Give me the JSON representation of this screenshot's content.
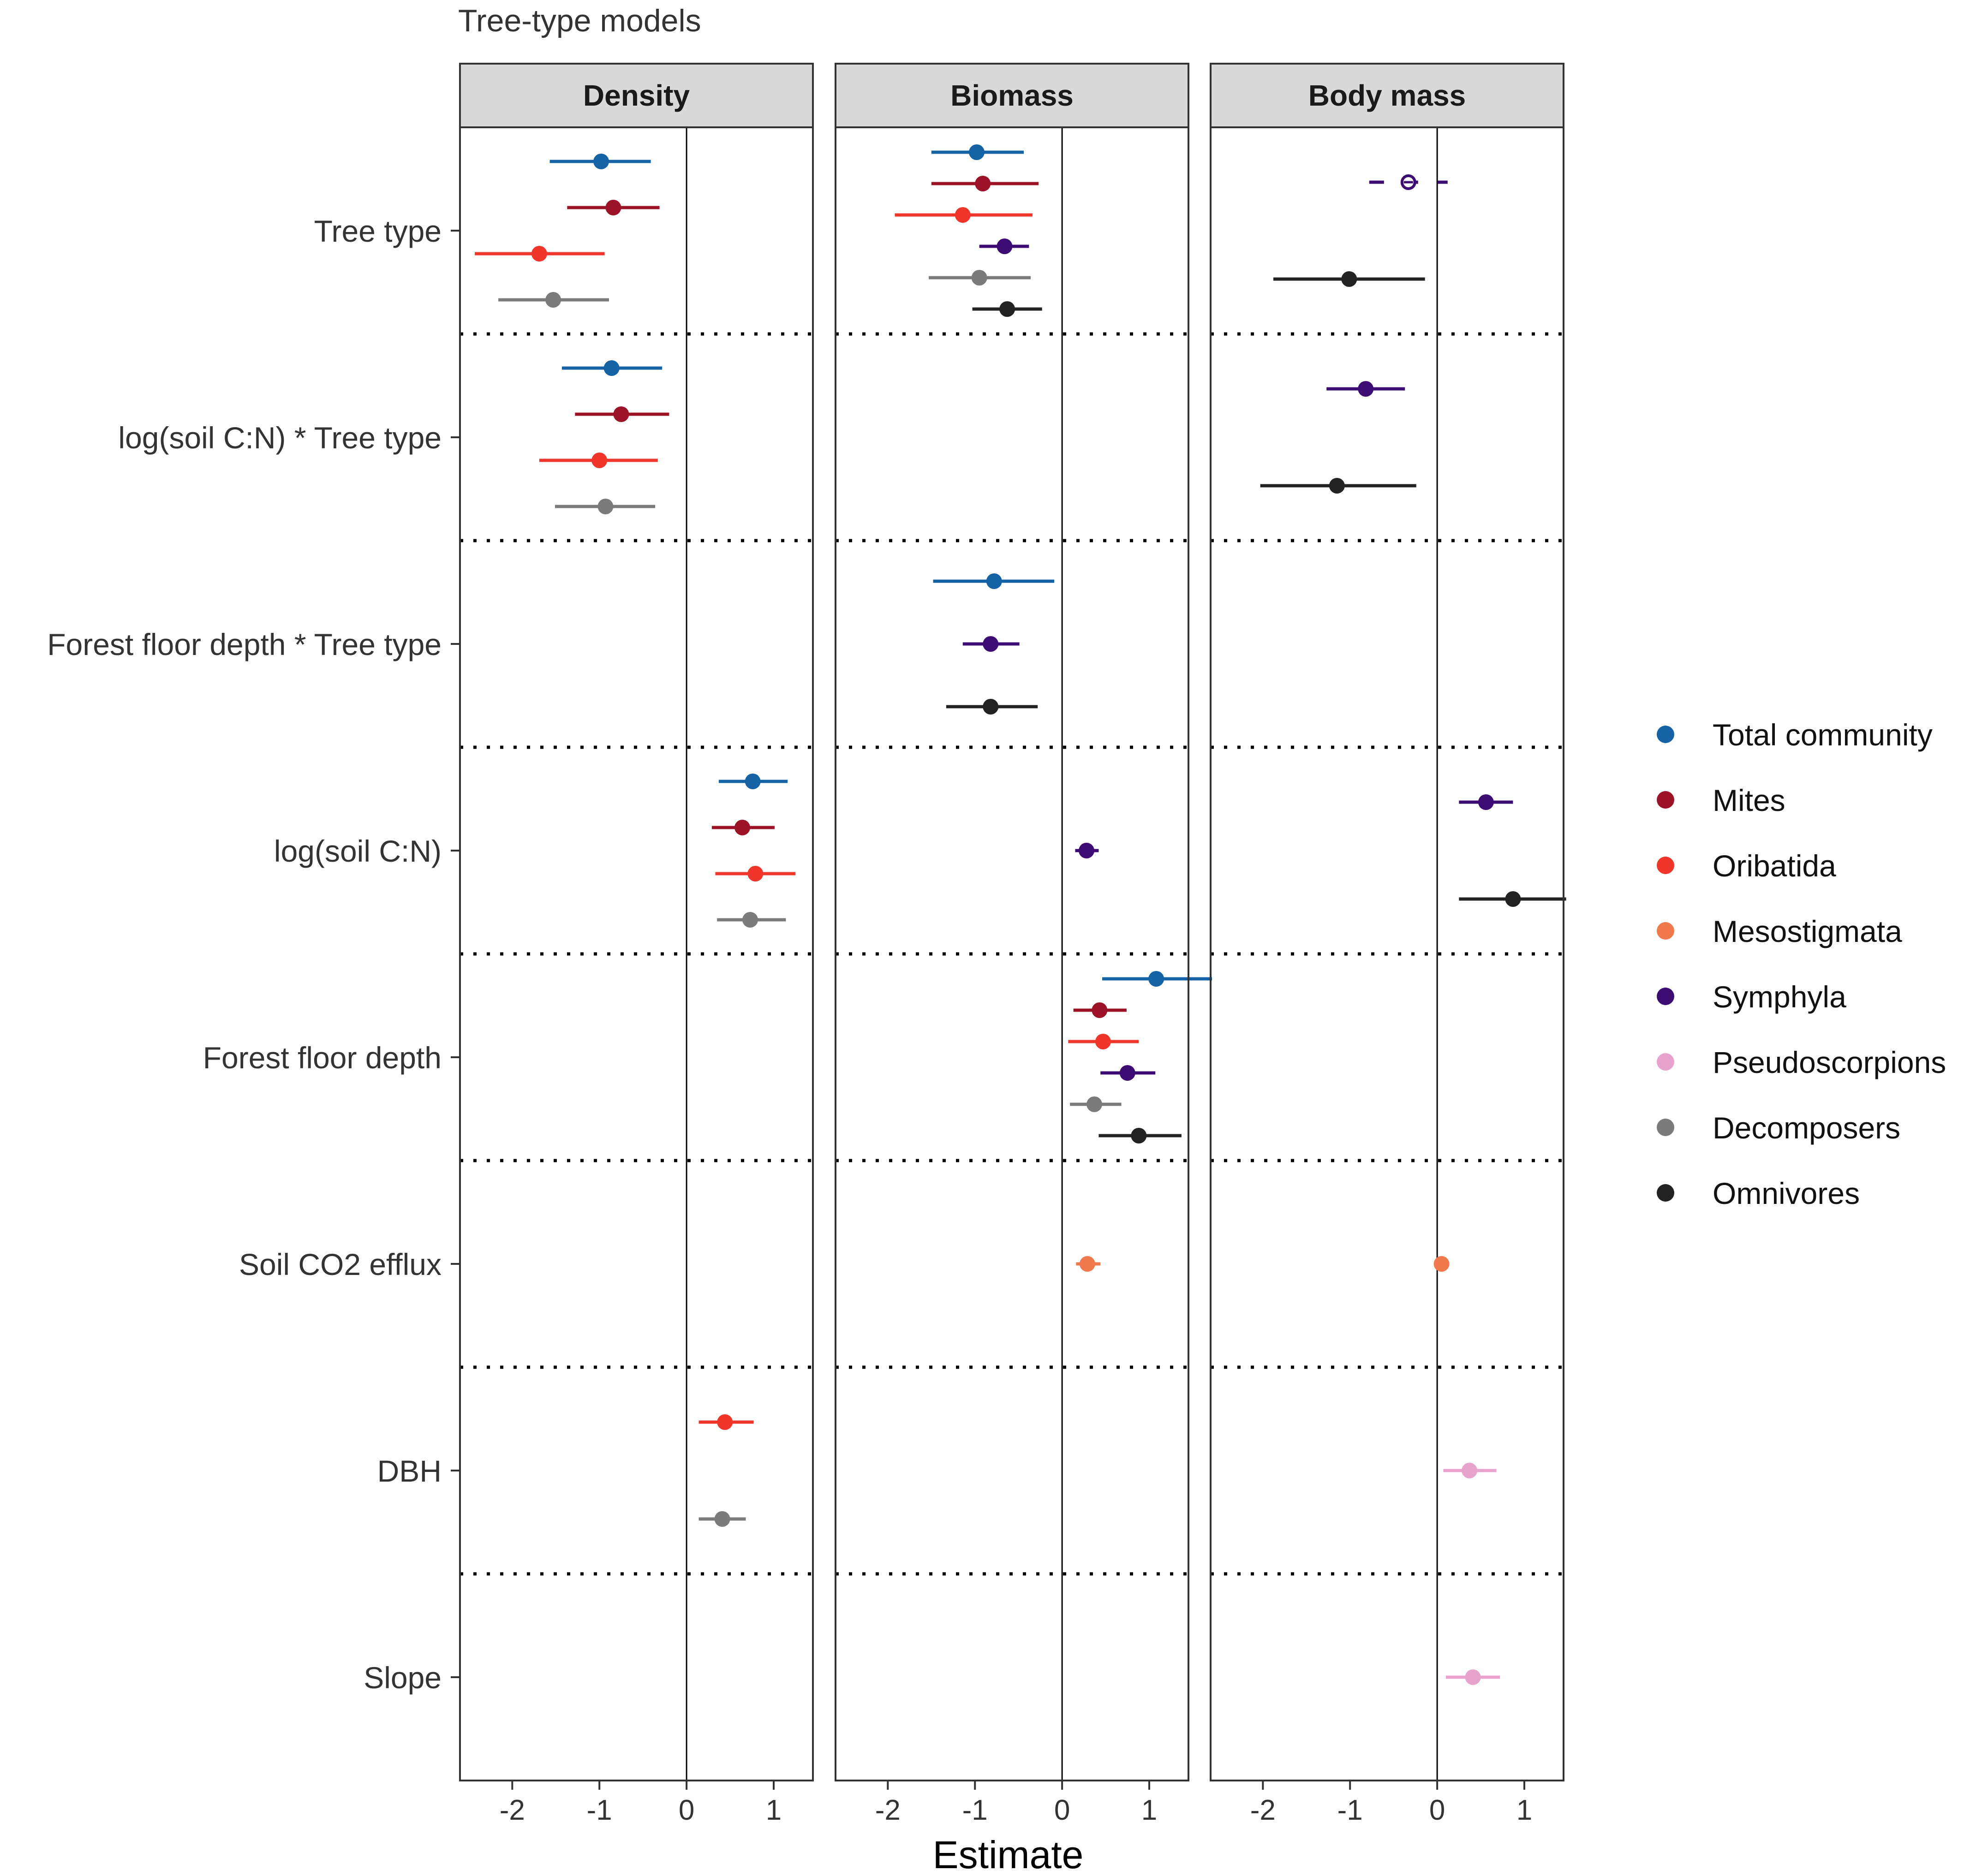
{
  "chart_data": {
    "type": "forest",
    "title": "Tree-type models",
    "xlabel": "Estimate",
    "xlim": [
      -2.6,
      1.45
    ],
    "xticks": [
      -2,
      -1,
      0,
      1
    ],
    "xtick_labels": [
      "-2",
      "-1",
      "0",
      "1"
    ],
    "terms": [
      "Tree type",
      "log(soil C:N) * Tree type",
      "Forest floor depth * Tree type",
      "log(soil C:N)",
      "Forest floor depth",
      "Soil CO2 efflux",
      "DBH",
      "Slope"
    ],
    "groups": [
      {
        "name": "Total community",
        "color": "#1563a4"
      },
      {
        "name": "Mites",
        "color": "#9c1327"
      },
      {
        "name": "Oribatida",
        "color": "#f0362b"
      },
      {
        "name": "Mesostigmata",
        "color": "#f07a4e"
      },
      {
        "name": "Symphyla",
        "color": "#3d0c73"
      },
      {
        "name": "Pseudoscorpions",
        "color": "#e8a3cd"
      },
      {
        "name": "Decomposers",
        "color": "#7b7b7b"
      },
      {
        "name": "Omnivores",
        "color": "#222222"
      }
    ],
    "panels": [
      {
        "name": "Density",
        "estimates": [
          {
            "term": 0,
            "group": "Total community",
            "est": -0.98,
            "lo": -1.57,
            "hi": -0.41
          },
          {
            "term": 0,
            "group": "Mites",
            "est": -0.84,
            "lo": -1.37,
            "hi": -0.31
          },
          {
            "term": 0,
            "group": "Oribatida",
            "est": -1.69,
            "lo": -2.43,
            "hi": -0.94
          },
          {
            "term": 0,
            "group": "Decomposers",
            "est": -1.53,
            "lo": -2.16,
            "hi": -0.89
          },
          {
            "term": 1,
            "group": "Total community",
            "est": -0.86,
            "lo": -1.43,
            "hi": -0.28
          },
          {
            "term": 1,
            "group": "Mites",
            "est": -0.75,
            "lo": -1.28,
            "hi": -0.2
          },
          {
            "term": 1,
            "group": "Oribatida",
            "est": -1.0,
            "lo": -1.69,
            "hi": -0.33
          },
          {
            "term": 1,
            "group": "Decomposers",
            "est": -0.93,
            "lo": -1.51,
            "hi": -0.36
          },
          {
            "term": 3,
            "group": "Total community",
            "est": 0.76,
            "lo": 0.37,
            "hi": 1.16
          },
          {
            "term": 3,
            "group": "Mites",
            "est": 0.64,
            "lo": 0.29,
            "hi": 1.01
          },
          {
            "term": 3,
            "group": "Oribatida",
            "est": 0.79,
            "lo": 0.33,
            "hi": 1.25
          },
          {
            "term": 3,
            "group": "Decomposers",
            "est": 0.73,
            "lo": 0.35,
            "hi": 1.14
          },
          {
            "term": 6,
            "group": "Oribatida",
            "est": 0.44,
            "lo": 0.14,
            "hi": 0.77
          },
          {
            "term": 6,
            "group": "Decomposers",
            "est": 0.41,
            "lo": 0.14,
            "hi": 0.68
          }
        ]
      },
      {
        "name": "Biomass",
        "estimates": [
          {
            "term": 0,
            "group": "Total community",
            "est": -0.98,
            "lo": -1.5,
            "hi": -0.44
          },
          {
            "term": 0,
            "group": "Mites",
            "est": -0.91,
            "lo": -1.5,
            "hi": -0.27
          },
          {
            "term": 0,
            "group": "Oribatida",
            "est": -1.14,
            "lo": -1.92,
            "hi": -0.34
          },
          {
            "term": 0,
            "group": "Symphyla",
            "est": -0.66,
            "lo": -0.95,
            "hi": -0.38
          },
          {
            "term": 0,
            "group": "Decomposers",
            "est": -0.95,
            "lo": -1.53,
            "hi": -0.36
          },
          {
            "term": 0,
            "group": "Omnivores",
            "est": -0.63,
            "lo": -1.03,
            "hi": -0.23
          },
          {
            "term": 2,
            "group": "Total community",
            "est": -0.78,
            "lo": -1.48,
            "hi": -0.09
          },
          {
            "term": 2,
            "group": "Symphyla",
            "est": -0.82,
            "lo": -1.14,
            "hi": -0.49
          },
          {
            "term": 2,
            "group": "Omnivores",
            "est": -0.82,
            "lo": -1.33,
            "hi": -0.28
          },
          {
            "term": 3,
            "group": "Symphyla",
            "est": 0.28,
            "lo": 0.15,
            "hi": 0.42
          },
          {
            "term": 4,
            "group": "Total community",
            "est": 1.08,
            "lo": 0.46,
            "hi": 1.72
          },
          {
            "term": 4,
            "group": "Mites",
            "est": 0.43,
            "lo": 0.13,
            "hi": 0.74
          },
          {
            "term": 4,
            "group": "Oribatida",
            "est": 0.47,
            "lo": 0.07,
            "hi": 0.88
          },
          {
            "term": 4,
            "group": "Symphyla",
            "est": 0.75,
            "lo": 0.44,
            "hi": 1.07
          },
          {
            "term": 4,
            "group": "Decomposers",
            "est": 0.37,
            "lo": 0.09,
            "hi": 0.68
          },
          {
            "term": 4,
            "group": "Omnivores",
            "est": 0.88,
            "lo": 0.42,
            "hi": 1.37
          },
          {
            "term": 5,
            "group": "Mesostigmata",
            "est": 0.29,
            "lo": 0.16,
            "hi": 0.44
          }
        ]
      },
      {
        "name": "Body mass",
        "estimates": [
          {
            "term": 0,
            "group": "Symphyla",
            "est": -0.33,
            "lo": -0.78,
            "hi": 0.12,
            "significant": false
          },
          {
            "term": 0,
            "group": "Omnivores",
            "est": -1.01,
            "lo": -1.88,
            "hi": -0.14
          },
          {
            "term": 1,
            "group": "Symphyla",
            "est": -0.82,
            "lo": -1.27,
            "hi": -0.37
          },
          {
            "term": 1,
            "group": "Omnivores",
            "est": -1.15,
            "lo": -2.03,
            "hi": -0.24
          },
          {
            "term": 3,
            "group": "Symphyla",
            "est": 0.56,
            "lo": 0.25,
            "hi": 0.87
          },
          {
            "term": 3,
            "group": "Omnivores",
            "est": 0.87,
            "lo": 0.25,
            "hi": 1.48
          },
          {
            "term": 5,
            "group": "Mesostigmata",
            "est": 0.05,
            "lo": 0.02,
            "hi": 0.08
          },
          {
            "term": 6,
            "group": "Pseudoscorpions",
            "est": 0.37,
            "lo": 0.07,
            "hi": 0.68
          },
          {
            "term": 7,
            "group": "Pseudoscorpions",
            "est": 0.41,
            "lo": 0.1,
            "hi": 0.72
          }
        ]
      }
    ]
  }
}
